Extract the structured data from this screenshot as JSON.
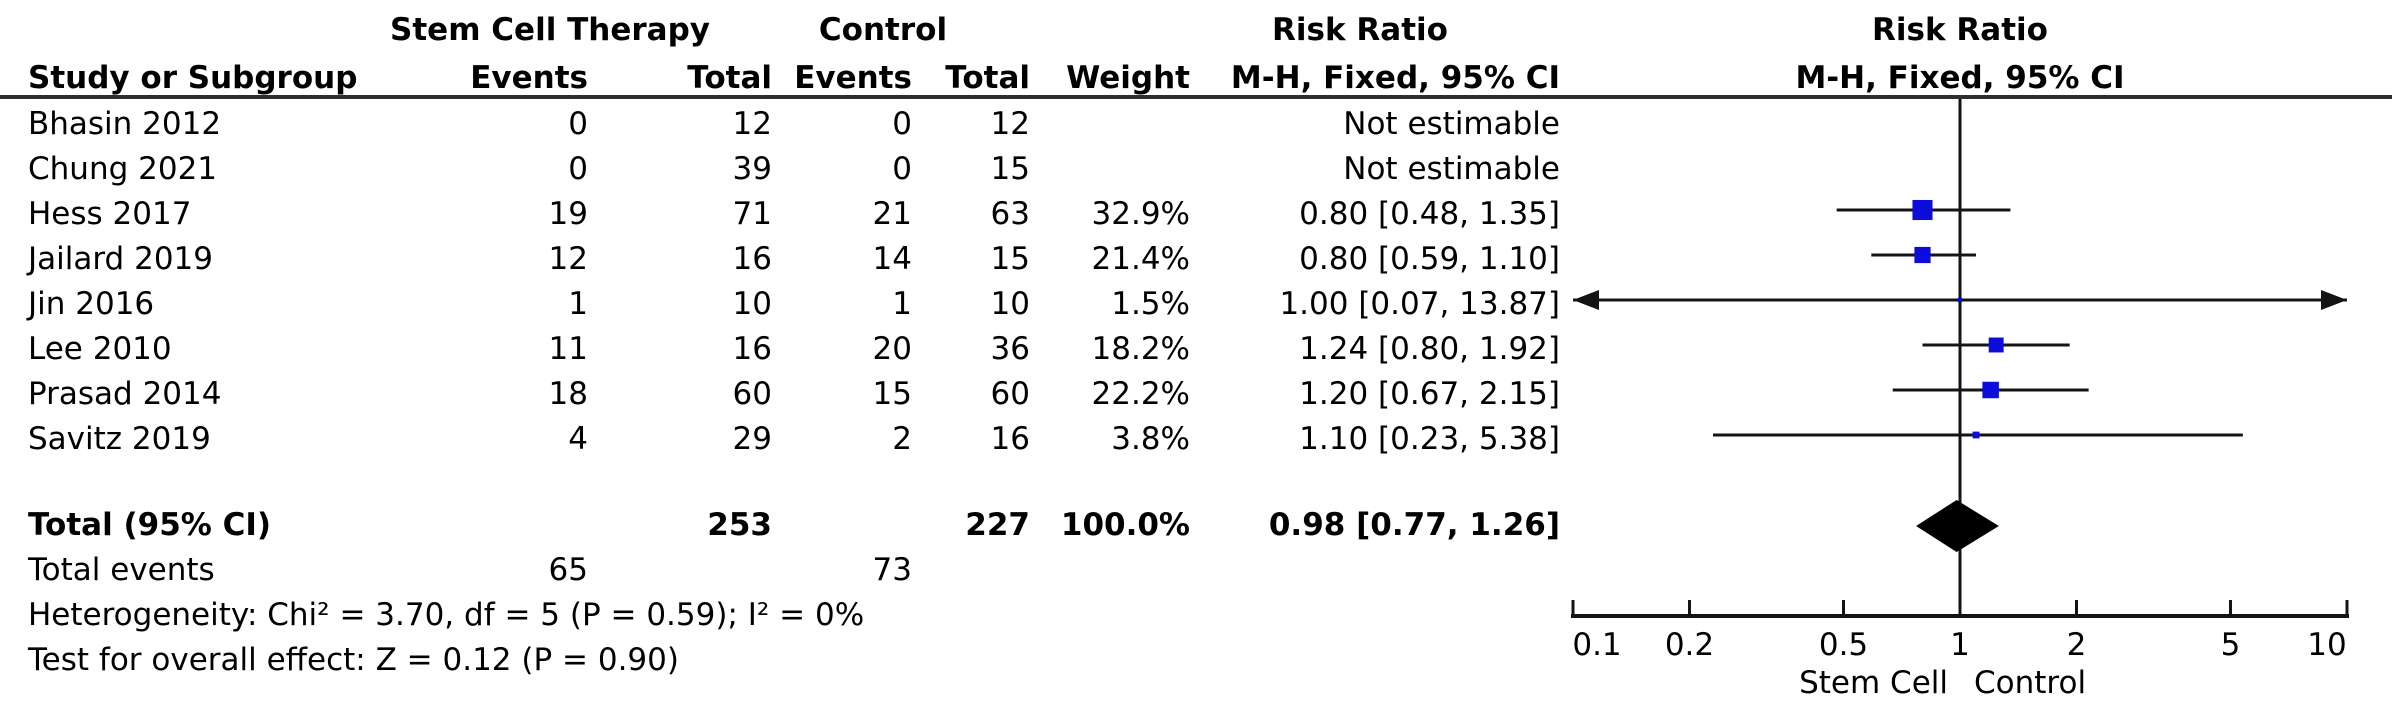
{
  "colors": {
    "square_blue": "#0d0ddb",
    "diamond_black": "#000000",
    "line_black": "#141414",
    "rule_gray": "#2e2e2e",
    "background": "#ffffff"
  },
  "table": {
    "header": {
      "group_experimental": "Stem Cell Therapy",
      "group_control": "Control",
      "group_risk_ratio": "Risk Ratio",
      "group_risk_ratio_plot": "Risk Ratio",
      "study": "Study or Subgroup",
      "events_experimental": "Events",
      "total_experimental": "Total",
      "events_control": "Events",
      "total_control": "Total",
      "weight": "Weight",
      "mh_fixed_ci": "M-H, Fixed, 95% CI",
      "mh_fixed_ci_plot": "M-H, Fixed, 95% CI"
    },
    "rows": [
      {
        "study": "Bhasin 2012",
        "e1": "0",
        "t1": "12",
        "e2": "0",
        "t2": "12",
        "weight": "",
        "rr_text": "Not estimable"
      },
      {
        "study": "Chung 2021",
        "e1": "0",
        "t1": "39",
        "e2": "0",
        "t2": "15",
        "weight": "",
        "rr_text": "Not estimable"
      },
      {
        "study": "Hess 2017",
        "e1": "19",
        "t1": "71",
        "e2": "21",
        "t2": "63",
        "weight": "32.9%",
        "rr_text": "0.80 [0.48, 1.35]"
      },
      {
        "study": "Jailard 2019",
        "e1": "12",
        "t1": "16",
        "e2": "14",
        "t2": "15",
        "weight": "21.4%",
        "rr_text": "0.80 [0.59, 1.10]"
      },
      {
        "study": "Jin 2016",
        "e1": "1",
        "t1": "10",
        "e2": "1",
        "t2": "10",
        "weight": "1.5%",
        "rr_text": "1.00 [0.07, 13.87]"
      },
      {
        "study": "Lee 2010",
        "e1": "11",
        "t1": "16",
        "e2": "20",
        "t2": "36",
        "weight": "18.2%",
        "rr_text": "1.24 [0.80, 1.92]"
      },
      {
        "study": "Prasad 2014",
        "e1": "18",
        "t1": "60",
        "e2": "15",
        "t2": "60",
        "weight": "22.2%",
        "rr_text": "1.20 [0.67, 2.15]"
      },
      {
        "study": "Savitz 2019",
        "e1": "4",
        "t1": "29",
        "e2": "2",
        "t2": "16",
        "weight": "3.8%",
        "rr_text": "1.10 [0.23, 5.38]"
      }
    ],
    "total_row": {
      "label": "Total (95% CI)",
      "t1": "253",
      "t2": "227",
      "weight": "100.0%",
      "rr_text": "0.98 [0.77, 1.26]"
    },
    "total_events_row": {
      "label": "Total events",
      "e1": "65",
      "e2": "73"
    },
    "heterogeneity": "Heterogeneity: Chi² = 3.70, df = 5 (P = 0.59); I² = 0%",
    "overall_effect": "Test for overall effect: Z = 0.12 (P = 0.90)"
  },
  "axis": {
    "tick_values": [
      0.1,
      0.2,
      0.5,
      1,
      2,
      5,
      10
    ],
    "tick_labels": [
      "0.1",
      "0.2",
      "0.5",
      "1",
      "2",
      "5",
      "10"
    ],
    "left_label": "Stem Cell",
    "right_label": "Control"
  },
  "chart_data": {
    "type": "forest",
    "effect_measure": "Risk Ratio",
    "method": "M-H, Fixed, 95% CI",
    "x_scale": "log",
    "x_ticks": [
      0.1,
      0.2,
      0.5,
      1,
      2,
      5,
      10
    ],
    "x_range": [
      0.1,
      10
    ],
    "null_line": 1,
    "favours_left": "Stem Cell",
    "favours_right": "Control",
    "studies": [
      {
        "name": "Bhasin 2012",
        "events_exp": 0,
        "total_exp": 12,
        "events_ctrl": 0,
        "total_ctrl": 12,
        "estimable": false
      },
      {
        "name": "Chung 2021",
        "events_exp": 0,
        "total_exp": 39,
        "events_ctrl": 0,
        "total_ctrl": 15,
        "estimable": false
      },
      {
        "name": "Hess 2017",
        "events_exp": 19,
        "total_exp": 71,
        "events_ctrl": 21,
        "total_ctrl": 63,
        "weight_pct": 32.9,
        "rr": 0.8,
        "ci_low": 0.48,
        "ci_high": 1.35,
        "estimable": true
      },
      {
        "name": "Jailard 2019",
        "events_exp": 12,
        "total_exp": 16,
        "events_ctrl": 14,
        "total_ctrl": 15,
        "weight_pct": 21.4,
        "rr": 0.8,
        "ci_low": 0.59,
        "ci_high": 1.1,
        "estimable": true
      },
      {
        "name": "Jin 2016",
        "events_exp": 1,
        "total_exp": 10,
        "events_ctrl": 1,
        "total_ctrl": 10,
        "weight_pct": 1.5,
        "rr": 1.0,
        "ci_low": 0.07,
        "ci_high": 13.87,
        "estimable": true
      },
      {
        "name": "Lee 2010",
        "events_exp": 11,
        "total_exp": 16,
        "events_ctrl": 20,
        "total_ctrl": 36,
        "weight_pct": 18.2,
        "rr": 1.24,
        "ci_low": 0.8,
        "ci_high": 1.92,
        "estimable": true
      },
      {
        "name": "Prasad 2014",
        "events_exp": 18,
        "total_exp": 60,
        "events_ctrl": 15,
        "total_ctrl": 60,
        "weight_pct": 22.2,
        "rr": 1.2,
        "ci_low": 0.67,
        "ci_high": 2.15,
        "estimable": true
      },
      {
        "name": "Savitz 2019",
        "events_exp": 4,
        "total_exp": 29,
        "events_ctrl": 2,
        "total_ctrl": 16,
        "weight_pct": 3.8,
        "rr": 1.1,
        "ci_low": 0.23,
        "ci_high": 5.38,
        "estimable": true
      }
    ],
    "pooled": {
      "label": "Total (95% CI)",
      "total_exp": 253,
      "total_ctrl": 227,
      "weight_pct": 100.0,
      "rr": 0.98,
      "ci_low": 0.77,
      "ci_high": 1.26
    },
    "total_events": {
      "experimental": 65,
      "control": 73
    },
    "heterogeneity": {
      "chi2": 3.7,
      "df": 5,
      "p": 0.59,
      "i2_pct": 0
    },
    "overall_effect": {
      "z": 0.12,
      "p": 0.9
    }
  }
}
